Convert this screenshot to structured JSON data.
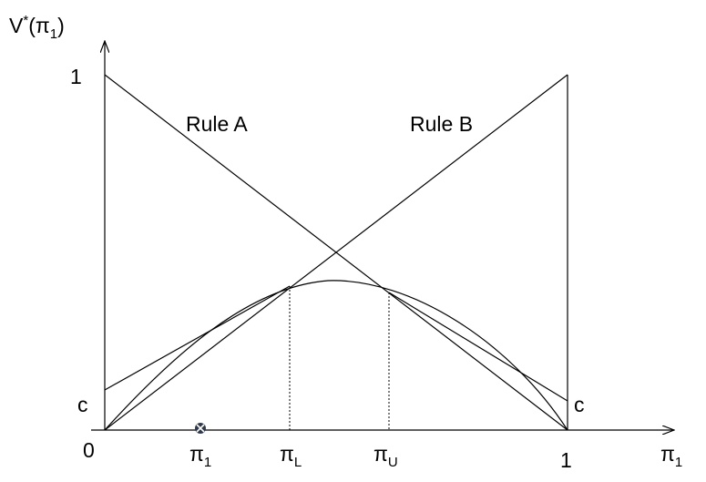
{
  "diagram": {
    "y_axis_label": {
      "main": "V",
      "sup": "*",
      "open": "(π",
      "sub": "1",
      "close": ")"
    },
    "x_axis_label": {
      "main": "π",
      "sub": "1"
    },
    "labels": {
      "y_one": "1",
      "c_left": "c",
      "c_right": "c",
      "origin": "0",
      "x_one": "1",
      "rule_a": "Rule A",
      "rule_b": "Rule B"
    },
    "x_ticks": {
      "pi1": {
        "main": "π",
        "sub": "1"
      },
      "piL": {
        "main": "π",
        "sub": "L"
      },
      "piU": {
        "main": "π",
        "sub": "U"
      }
    },
    "marker": {
      "name": "cross-marker-icon",
      "color": "#303a4a"
    }
  }
}
